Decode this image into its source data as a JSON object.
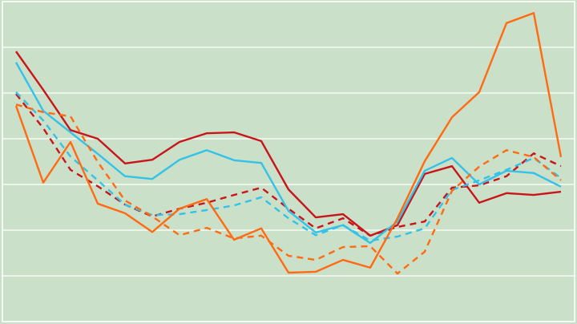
{
  "chart_data": {
    "type": "line",
    "x": [
      0,
      1,
      2,
      3,
      4,
      5,
      6,
      7,
      8,
      9,
      10,
      11,
      12,
      13,
      14,
      15,
      16,
      17,
      18,
      19,
      20
    ],
    "xlim": [
      -0.5,
      20.5
    ],
    "ylim": [
      0,
      7
    ],
    "yticks": [
      0,
      1,
      2,
      3,
      4,
      5,
      6,
      7
    ],
    "grid": true,
    "series": [
      {
        "color": "#c8151b",
        "dashed": false,
        "values": [
          5.91,
          5.07,
          4.19,
          4.0,
          3.46,
          3.54,
          3.93,
          4.12,
          4.14,
          3.95,
          2.89,
          2.28,
          2.35,
          1.88,
          2.11,
          3.23,
          3.4,
          2.6,
          2.81,
          2.77,
          2.84
        ]
      },
      {
        "color": "#c8151b",
        "dashed": true,
        "values": [
          4.98,
          4.23,
          3.32,
          2.96,
          2.56,
          2.3,
          2.47,
          2.6,
          2.77,
          2.93,
          2.47,
          2.04,
          2.26,
          1.88,
          2.07,
          2.19,
          2.93,
          2.98,
          3.18,
          3.68,
          3.4
        ]
      },
      {
        "color": "#33c2e8",
        "dashed": false,
        "values": [
          5.67,
          4.61,
          4.14,
          3.67,
          3.18,
          3.12,
          3.54,
          3.75,
          3.53,
          3.47,
          2.42,
          1.95,
          2.11,
          1.72,
          2.19,
          3.3,
          3.58,
          3.0,
          3.3,
          3.25,
          2.95
        ]
      },
      {
        "color": "#33c2e8",
        "dashed": true,
        "values": [
          5.02,
          4.4,
          3.61,
          3.09,
          2.56,
          2.33,
          2.35,
          2.44,
          2.54,
          2.72,
          2.26,
          1.89,
          2.11,
          1.77,
          1.86,
          2.04,
          2.88,
          3.09,
          3.32,
          3.58,
          3.14
        ]
      },
      {
        "color": "#ff6a12",
        "dashed": false,
        "values": [
          4.72,
          3.04,
          3.93,
          2.58,
          2.37,
          1.96,
          2.47,
          2.68,
          1.79,
          2.04,
          1.07,
          1.09,
          1.35,
          1.18,
          2.26,
          3.51,
          4.47,
          5.02,
          6.53,
          6.75,
          3.6
        ]
      },
      {
        "color": "#ff6a12",
        "dashed": true,
        "values": [
          4.75,
          4.58,
          4.49,
          3.49,
          2.65,
          2.3,
          1.89,
          2.05,
          1.82,
          1.88,
          1.44,
          1.35,
          1.63,
          1.65,
          1.05,
          1.53,
          2.86,
          3.39,
          3.75,
          3.6,
          3.09
        ]
      }
    ]
  }
}
